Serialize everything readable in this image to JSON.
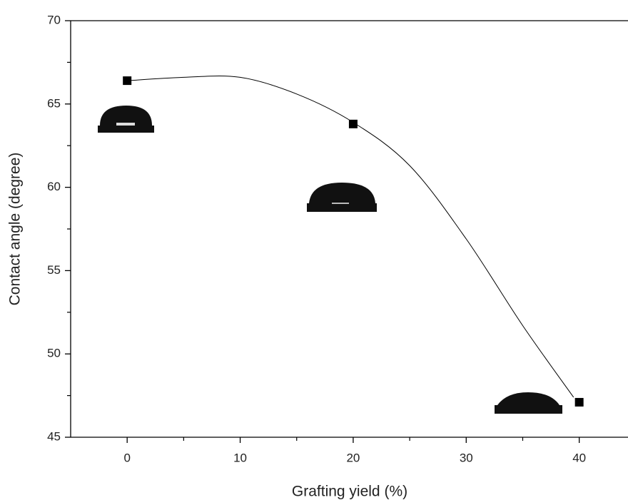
{
  "chart_data": {
    "type": "scatter",
    "x_label": "Grafting yield (%)",
    "y_label": "Contact angle (degree)",
    "series": [
      {
        "type": "scatter",
        "color": "#000000",
        "x": [
          0,
          20,
          40
        ],
        "values": [
          66.4,
          63.8,
          47.1
        ]
      },
      {
        "type": "line",
        "color": "#000000",
        "x": [
          0,
          5,
          10,
          15,
          20,
          25,
          30,
          35,
          39.5
        ],
        "values": [
          66.4,
          66.6,
          66.6,
          65.6,
          63.9,
          61.3,
          56.9,
          51.7,
          47.4
        ]
      }
    ],
    "xlim": [
      -5,
      44
    ],
    "xticks": [
      0,
      10,
      20,
      30,
      40
    ],
    "xminorticks": [
      5,
      15,
      25,
      35
    ],
    "ylim": [
      45,
      70
    ],
    "yticks": [
      45,
      50,
      55,
      60,
      65,
      70
    ],
    "yminorticks": [
      47.5,
      52.5,
      57.5,
      62.5,
      67.5
    ]
  }
}
